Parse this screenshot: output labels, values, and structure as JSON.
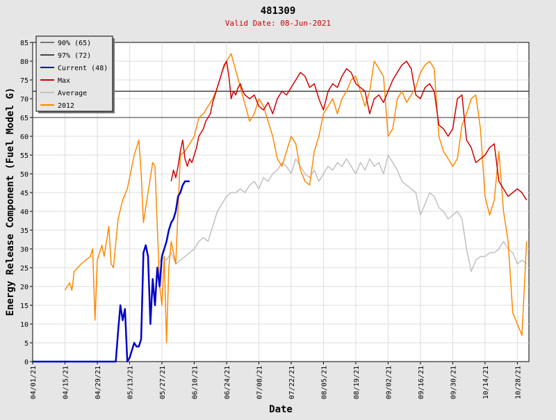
{
  "chart_data": {
    "type": "line",
    "title": "481309",
    "subtitle": "Valid Date: 08-Jun-2021",
    "xlabel": "Date",
    "ylabel": "Energy Release Component (Fuel Model G)",
    "ylim": [
      0,
      85
    ],
    "yticks": [
      0,
      5,
      10,
      15,
      20,
      25,
      30,
      35,
      40,
      45,
      50,
      55,
      60,
      65,
      70,
      75,
      80,
      85
    ],
    "xlim": [
      "2021-04-01",
      "2021-11-02"
    ],
    "xticks": [
      "04/01/21",
      "04/15/21",
      "04/29/21",
      "05/13/21",
      "05/27/21",
      "06/10/21",
      "06/24/21",
      "07/08/21",
      "07/22/21",
      "08/05/21",
      "08/19/21",
      "09/02/21",
      "09/16/21",
      "09/30/21",
      "10/14/21",
      "10/28/21"
    ],
    "grid": true,
    "legend_position": "top-left",
    "series": [
      {
        "name": "90% (65)",
        "kind": "hline",
        "value": 65,
        "color": "#777777"
      },
      {
        "name": "97% (72)",
        "kind": "hline",
        "value": 72,
        "color": "#444444"
      },
      {
        "name": "Current (48)",
        "color": "#0000cc",
        "x": [
          "2021-04-01",
          "2021-04-09",
          "2021-04-17",
          "2021-04-25",
          "2021-05-03",
          "2021-05-06",
          "2021-05-07",
          "2021-05-08",
          "2021-05-09",
          "2021-05-10",
          "2021-05-11",
          "2021-05-12",
          "2021-05-13",
          "2021-05-14",
          "2021-05-15",
          "2021-05-16",
          "2021-05-17",
          "2021-05-18",
          "2021-05-19",
          "2021-05-20",
          "2021-05-21",
          "2021-05-22",
          "2021-05-23",
          "2021-05-24",
          "2021-05-25",
          "2021-05-26",
          "2021-05-27",
          "2021-05-28",
          "2021-05-29",
          "2021-05-30",
          "2021-05-31",
          "2021-06-01",
          "2021-06-02",
          "2021-06-03",
          "2021-06-04",
          "2021-06-05",
          "2021-06-06",
          "2021-06-07",
          "2021-06-08"
        ],
        "y": [
          0,
          0,
          0,
          0,
          0,
          0,
          0,
          8,
          15,
          11,
          14,
          0,
          1,
          3,
          5,
          4,
          4,
          6,
          29,
          31,
          28,
          10,
          22,
          15,
          25,
          20,
          28,
          30,
          32,
          35,
          37,
          38,
          40,
          44,
          45,
          47,
          48,
          48,
          48
        ]
      },
      {
        "name": "Max",
        "color": "#cc0000",
        "x": [
          "2021-05-31",
          "2021-06-01",
          "2021-06-02",
          "2021-06-03",
          "2021-06-04",
          "2021-06-05",
          "2021-06-06",
          "2021-06-07",
          "2021-06-08",
          "2021-06-09",
          "2021-06-10",
          "2021-06-11",
          "2021-06-12",
          "2021-06-13",
          "2021-06-14",
          "2021-06-15",
          "2021-06-16",
          "2021-06-17",
          "2021-06-18",
          "2021-06-19",
          "2021-06-20",
          "2021-06-21",
          "2021-06-22",
          "2021-06-23",
          "2021-06-24",
          "2021-06-25",
          "2021-06-26",
          "2021-06-27",
          "2021-06-28",
          "2021-06-29",
          "2021-06-30",
          "2021-07-01",
          "2021-07-02",
          "2021-07-04",
          "2021-07-06",
          "2021-07-08",
          "2021-07-10",
          "2021-07-12",
          "2021-07-14",
          "2021-07-16",
          "2021-07-18",
          "2021-07-20",
          "2021-07-22",
          "2021-07-24",
          "2021-07-26",
          "2021-07-28",
          "2021-07-30",
          "2021-08-01",
          "2021-08-03",
          "2021-08-05",
          "2021-08-07",
          "2021-08-09",
          "2021-08-11",
          "2021-08-13",
          "2021-08-15",
          "2021-08-17",
          "2021-08-19",
          "2021-08-21",
          "2021-08-23",
          "2021-08-25",
          "2021-08-27",
          "2021-08-29",
          "2021-08-31",
          "2021-09-02",
          "2021-09-04",
          "2021-09-06",
          "2021-09-08",
          "2021-09-10",
          "2021-09-12",
          "2021-09-14",
          "2021-09-16",
          "2021-09-18",
          "2021-09-20",
          "2021-09-22",
          "2021-09-24",
          "2021-09-26",
          "2021-09-28",
          "2021-09-30",
          "2021-10-02",
          "2021-10-04",
          "2021-10-06",
          "2021-10-08",
          "2021-10-10",
          "2021-10-12",
          "2021-10-14",
          "2021-10-16",
          "2021-10-18",
          "2021-10-20",
          "2021-10-22",
          "2021-10-24",
          "2021-10-26",
          "2021-10-28",
          "2021-10-30",
          "2021-11-01"
        ],
        "y": [
          48,
          51,
          49,
          52,
          56,
          59,
          54,
          52,
          54,
          53,
          55,
          57,
          60,
          61,
          62,
          64,
          65,
          66,
          69,
          71,
          73,
          75,
          77,
          79,
          80,
          76,
          70,
          72,
          71,
          73,
          74,
          72,
          71,
          70,
          71,
          68,
          67,
          69,
          66,
          70,
          72,
          71,
          73,
          75,
          77,
          76,
          73,
          74,
          70,
          67,
          72,
          74,
          73,
          76,
          78,
          77,
          74,
          73,
          72,
          66,
          70,
          71,
          69,
          72,
          75,
          77,
          79,
          80,
          78,
          71,
          70,
          73,
          74,
          72,
          63,
          62,
          60,
          62,
          70,
          71,
          59,
          57,
          53,
          54,
          55,
          57,
          58,
          48,
          46,
          44,
          45,
          46,
          45,
          43
        ]
      },
      {
        "name": "Average",
        "color": "#c0c0c0",
        "x": [
          "2021-05-25",
          "2021-05-27",
          "2021-05-29",
          "2021-05-31",
          "2021-06-02",
          "2021-06-04",
          "2021-06-06",
          "2021-06-08",
          "2021-06-10",
          "2021-06-12",
          "2021-06-14",
          "2021-06-16",
          "2021-06-18",
          "2021-06-20",
          "2021-06-22",
          "2021-06-24",
          "2021-06-26",
          "2021-06-28",
          "2021-06-30",
          "2021-07-02",
          "2021-07-04",
          "2021-07-06",
          "2021-07-08",
          "2021-07-10",
          "2021-07-12",
          "2021-07-14",
          "2021-07-16",
          "2021-07-18",
          "2021-07-20",
          "2021-07-22",
          "2021-07-24",
          "2021-07-26",
          "2021-07-28",
          "2021-07-30",
          "2021-08-01",
          "2021-08-03",
          "2021-08-05",
          "2021-08-07",
          "2021-08-09",
          "2021-08-11",
          "2021-08-13",
          "2021-08-15",
          "2021-08-17",
          "2021-08-19",
          "2021-08-21",
          "2021-08-23",
          "2021-08-25",
          "2021-08-27",
          "2021-08-29",
          "2021-08-31",
          "2021-09-02",
          "2021-09-04",
          "2021-09-06",
          "2021-09-08",
          "2021-09-10",
          "2021-09-12",
          "2021-09-14",
          "2021-09-16",
          "2021-09-18",
          "2021-09-20",
          "2021-09-22",
          "2021-09-24",
          "2021-09-26",
          "2021-09-28",
          "2021-09-30",
          "2021-10-02",
          "2021-10-04",
          "2021-10-06",
          "2021-10-08",
          "2021-10-10",
          "2021-10-12",
          "2021-10-14",
          "2021-10-16",
          "2021-10-18",
          "2021-10-20",
          "2021-10-22",
          "2021-10-24",
          "2021-10-26",
          "2021-10-28",
          "2021-10-30",
          "2021-11-01"
        ],
        "y": [
          25,
          28,
          27,
          29,
          26,
          27,
          28,
          29,
          30,
          32,
          33,
          32,
          36,
          40,
          42,
          44,
          45,
          45,
          46,
          45,
          47,
          48,
          46,
          49,
          48,
          50,
          51,
          53,
          52,
          50,
          54,
          52,
          50,
          49,
          51,
          48,
          50,
          52,
          51,
          53,
          52,
          54,
          52,
          50,
          53,
          51,
          54,
          52,
          53,
          50,
          55,
          53,
          51,
          48,
          47,
          46,
          45,
          39,
          42,
          45,
          44,
          41,
          40,
          38,
          39,
          40,
          38,
          30,
          24,
          27,
          28,
          28,
          29,
          29,
          30,
          32,
          30,
          29,
          26,
          27,
          26
        ]
      },
      {
        "name": "2012",
        "color": "#ff8800",
        "x": [
          "2021-04-15",
          "2021-04-17",
          "2021-04-18",
          "2021-04-19",
          "2021-04-22",
          "2021-04-26",
          "2021-04-27",
          "2021-04-28",
          "2021-04-29",
          "2021-05-01",
          "2021-05-02",
          "2021-05-04",
          "2021-05-05",
          "2021-05-06",
          "2021-05-08",
          "2021-05-10",
          "2021-05-12",
          "2021-05-15",
          "2021-05-17",
          "2021-05-18",
          "2021-05-19",
          "2021-05-21",
          "2021-05-23",
          "2021-05-24",
          "2021-05-25",
          "2021-05-26",
          "2021-05-27",
          "2021-05-28",
          "2021-05-29",
          "2021-05-30",
          "2021-05-31",
          "2021-06-02",
          "2021-06-04",
          "2021-06-06",
          "2021-06-08",
          "2021-06-10",
          "2021-06-12",
          "2021-06-14",
          "2021-06-16",
          "2021-06-18",
          "2021-06-20",
          "2021-06-22",
          "2021-06-24",
          "2021-06-26",
          "2021-07-04",
          "2021-07-06",
          "2021-07-08",
          "2021-07-10",
          "2021-07-12",
          "2021-07-14",
          "2021-07-16",
          "2021-07-18",
          "2021-07-20",
          "2021-07-22",
          "2021-07-24",
          "2021-07-26",
          "2021-07-28",
          "2021-07-30",
          "2021-08-01",
          "2021-08-03",
          "2021-08-05",
          "2021-08-07",
          "2021-08-09",
          "2021-08-11",
          "2021-08-13",
          "2021-08-15",
          "2021-08-17",
          "2021-08-19",
          "2021-08-21",
          "2021-08-23",
          "2021-08-25",
          "2021-08-27",
          "2021-08-29",
          "2021-08-31",
          "2021-09-02",
          "2021-09-04",
          "2021-09-06",
          "2021-09-08",
          "2021-09-10",
          "2021-09-12",
          "2021-09-14",
          "2021-09-16",
          "2021-09-18",
          "2021-09-20",
          "2021-09-22",
          "2021-09-24",
          "2021-09-26",
          "2021-09-28",
          "2021-09-30",
          "2021-10-02",
          "2021-10-04",
          "2021-10-06",
          "2021-10-08",
          "2021-10-10",
          "2021-10-12",
          "2021-10-14",
          "2021-10-16",
          "2021-10-18",
          "2021-10-20",
          "2021-10-22",
          "2021-10-24",
          "2021-10-26",
          "2021-10-28",
          "2021-10-30",
          "2021-11-01"
        ],
        "y": [
          19,
          21,
          19,
          24,
          26,
          28,
          30,
          11,
          27,
          31,
          28,
          36,
          26,
          25,
          38,
          43,
          46,
          55,
          59,
          50,
          37,
          45,
          53,
          52,
          36,
          20,
          15,
          28,
          5,
          25,
          32,
          26,
          55,
          56,
          58,
          60,
          65,
          66,
          68,
          70,
          73,
          77,
          80,
          82,
          64,
          66,
          70,
          68,
          64,
          60,
          54,
          52,
          56,
          60,
          58,
          51,
          48,
          47,
          56,
          60,
          66,
          68,
          70,
          66,
          70,
          72,
          75,
          76,
          72,
          68,
          72,
          80,
          78,
          76,
          60,
          62,
          70,
          72,
          69,
          71,
          73,
          77,
          79,
          80,
          78,
          60,
          56,
          54,
          52,
          54,
          63,
          66,
          70,
          71,
          62,
          44,
          39,
          43,
          56,
          40,
          32,
          13,
          10,
          7,
          32
        ]
      }
    ]
  }
}
